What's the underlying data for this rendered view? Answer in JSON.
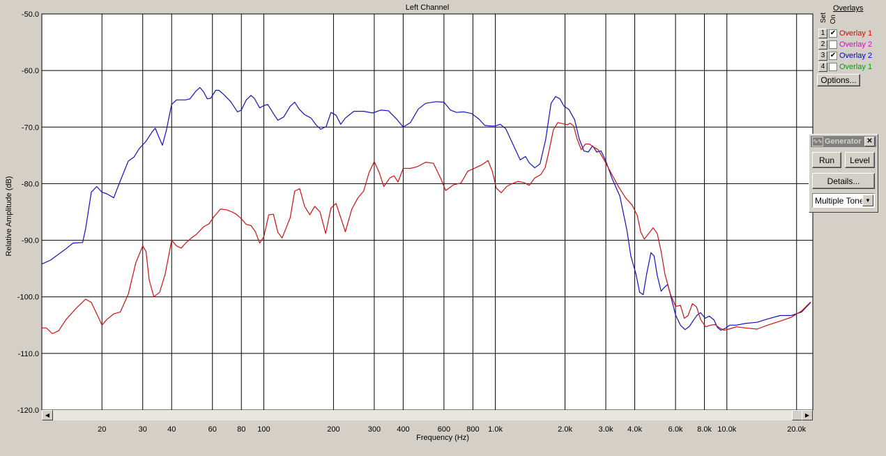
{
  "chart_data": {
    "type": "line",
    "title": "Left Channel",
    "xlabel": "Frequency (Hz)",
    "ylabel": "Relative Amplitude (dB)",
    "xscale": "log",
    "xlim": [
      11,
      23500
    ],
    "ylim": [
      -120,
      -50
    ],
    "grid": true,
    "x_ticks": [
      20,
      30,
      40,
      60,
      80,
      100,
      200,
      300,
      400,
      600,
      800,
      1000,
      2000,
      3000,
      4000,
      6000,
      8000,
      10000,
      20000
    ],
    "x_tick_labels": [
      "20",
      "30",
      "40",
      "60",
      "80",
      "100",
      "200",
      "300",
      "400",
      "600",
      "800",
      "1.0k",
      "2.0k",
      "3.0k",
      "4.0k",
      "6.0k",
      "8.0k",
      "10.0k",
      "20.0k"
    ],
    "y_ticks": [
      -50,
      -60,
      -70,
      -80,
      -90,
      -100,
      -110,
      -120
    ],
    "y_tick_labels": [
      "-50.0",
      "-60.0",
      "-70.0",
      "-80.0",
      "-90.0",
      "-100.0",
      "-110.0",
      "-120.0"
    ],
    "series": [
      {
        "color": "#1010c0",
        "points": [
          [
            11,
            -94.2
          ],
          [
            12,
            -93.5
          ],
          [
            14,
            -91.5
          ],
          [
            15,
            -90.5
          ],
          [
            16.5,
            -90.4
          ],
          [
            17,
            -88
          ],
          [
            18,
            -81.5
          ],
          [
            19,
            -80.5
          ],
          [
            20,
            -81.5
          ],
          [
            21,
            -81.8
          ],
          [
            22.5,
            -82.5
          ],
          [
            24,
            -79.5
          ],
          [
            26,
            -76
          ],
          [
            27.5,
            -75.3
          ],
          [
            29,
            -73.8
          ],
          [
            31,
            -72.5
          ],
          [
            33,
            -70.8
          ],
          [
            34,
            -70.2
          ],
          [
            35,
            -71.5
          ],
          [
            36.5,
            -73.2
          ],
          [
            38,
            -70.5
          ],
          [
            40,
            -66
          ],
          [
            42,
            -65.2
          ],
          [
            46,
            -65.2
          ],
          [
            48,
            -65
          ],
          [
            51,
            -63.6
          ],
          [
            53,
            -63
          ],
          [
            55,
            -63.8
          ],
          [
            57,
            -65
          ],
          [
            59,
            -64.9
          ],
          [
            62,
            -63.5
          ],
          [
            64,
            -63.5
          ],
          [
            67,
            -64.2
          ],
          [
            72,
            -65.5
          ],
          [
            77,
            -67.3
          ],
          [
            80,
            -67
          ],
          [
            84,
            -65.2
          ],
          [
            88,
            -64.4
          ],
          [
            91,
            -64.9
          ],
          [
            96,
            -66.6
          ],
          [
            100,
            -66.2
          ],
          [
            104,
            -66
          ],
          [
            110,
            -67.6
          ],
          [
            115,
            -68.8
          ],
          [
            122,
            -68.2
          ],
          [
            130,
            -66.3
          ],
          [
            136,
            -65.6
          ],
          [
            142,
            -66.8
          ],
          [
            150,
            -67.8
          ],
          [
            160,
            -68.4
          ],
          [
            168,
            -69.6
          ],
          [
            176,
            -70.4
          ],
          [
            186,
            -69.9
          ],
          [
            195,
            -67.4
          ],
          [
            205,
            -67.9
          ],
          [
            215,
            -69.5
          ],
          [
            225,
            -68.4
          ],
          [
            245,
            -67.2
          ],
          [
            270,
            -67.2
          ],
          [
            295,
            -67.5
          ],
          [
            320,
            -67
          ],
          [
            345,
            -67.1
          ],
          [
            375,
            -68.6
          ],
          [
            400,
            -70
          ],
          [
            430,
            -69.2
          ],
          [
            465,
            -66.8
          ],
          [
            500,
            -65.8
          ],
          [
            555,
            -65.5
          ],
          [
            600,
            -65.6
          ],
          [
            640,
            -67
          ],
          [
            680,
            -67.4
          ],
          [
            730,
            -67.3
          ],
          [
            790,
            -67.6
          ],
          [
            850,
            -68.6
          ],
          [
            900,
            -69.7
          ],
          [
            950,
            -69.8
          ],
          [
            1000,
            -69.8
          ],
          [
            1050,
            -69.5
          ],
          [
            1110,
            -70.3
          ],
          [
            1190,
            -73
          ],
          [
            1280,
            -75.8
          ],
          [
            1350,
            -75.2
          ],
          [
            1400,
            -76.3
          ],
          [
            1480,
            -77.2
          ],
          [
            1560,
            -76.5
          ],
          [
            1650,
            -72.2
          ],
          [
            1740,
            -65.8
          ],
          [
            1820,
            -64.6
          ],
          [
            1900,
            -65
          ],
          [
            1980,
            -66.3
          ],
          [
            2080,
            -66.9
          ],
          [
            2200,
            -68.7
          ],
          [
            2300,
            -72
          ],
          [
            2410,
            -74.2
          ],
          [
            2520,
            -74.4
          ],
          [
            2630,
            -73.3
          ],
          [
            2740,
            -74.4
          ],
          [
            2860,
            -74.2
          ],
          [
            3000,
            -76
          ],
          [
            3200,
            -79.2
          ],
          [
            3450,
            -82.2
          ],
          [
            3700,
            -88.2
          ],
          [
            3850,
            -92.8
          ],
          [
            4050,
            -96
          ],
          [
            4200,
            -99.2
          ],
          [
            4350,
            -99.6
          ],
          [
            4500,
            -96
          ],
          [
            4700,
            -92.2
          ],
          [
            4850,
            -92.8
          ],
          [
            5000,
            -96.2
          ],
          [
            5200,
            -99
          ],
          [
            5350,
            -98.4
          ],
          [
            5550,
            -97.8
          ],
          [
            5700,
            -99.6
          ],
          [
            6000,
            -103.2
          ],
          [
            6300,
            -105
          ],
          [
            6600,
            -105.8
          ],
          [
            6900,
            -105.2
          ],
          [
            7150,
            -104.2
          ],
          [
            7450,
            -103.2
          ],
          [
            7700,
            -102.8
          ],
          [
            8050,
            -103.8
          ],
          [
            8400,
            -103.4
          ],
          [
            8800,
            -104.1
          ],
          [
            9100,
            -105.4
          ],
          [
            9400,
            -105.9
          ],
          [
            9800,
            -105.6
          ],
          [
            10300,
            -105
          ],
          [
            11000,
            -105
          ],
          [
            12000,
            -104.7
          ],
          [
            13500,
            -104.5
          ],
          [
            15000,
            -103.9
          ],
          [
            17000,
            -103.3
          ],
          [
            19000,
            -103.3
          ],
          [
            21000,
            -102.7
          ],
          [
            23000,
            -101
          ]
        ]
      },
      {
        "color": "#d01010",
        "points": [
          [
            11,
            -105.5
          ],
          [
            11.5,
            -105.5
          ],
          [
            12.2,
            -106.5
          ],
          [
            13,
            -106
          ],
          [
            14,
            -104
          ],
          [
            15.5,
            -102
          ],
          [
            17,
            -100.4
          ],
          [
            18,
            -101
          ],
          [
            19.5,
            -104
          ],
          [
            20,
            -105
          ],
          [
            21,
            -104
          ],
          [
            22.5,
            -103
          ],
          [
            24,
            -102.7
          ],
          [
            26,
            -99.5
          ],
          [
            28,
            -94
          ],
          [
            30,
            -91
          ],
          [
            31,
            -92
          ],
          [
            32,
            -97
          ],
          [
            33.5,
            -100
          ],
          [
            35.5,
            -99.2
          ],
          [
            37.5,
            -96
          ],
          [
            40,
            -90
          ],
          [
            42,
            -91
          ],
          [
            44,
            -91.4
          ],
          [
            46,
            -90.5
          ],
          [
            49,
            -89.5
          ],
          [
            51,
            -89
          ],
          [
            55,
            -87.6
          ],
          [
            58,
            -87.1
          ],
          [
            61,
            -85.8
          ],
          [
            65,
            -84.5
          ],
          [
            69,
            -84.6
          ],
          [
            73,
            -85
          ],
          [
            76,
            -85.4
          ],
          [
            80,
            -86.2
          ],
          [
            84,
            -87.2
          ],
          [
            88,
            -87.4
          ],
          [
            92,
            -88.5
          ],
          [
            96,
            -90.5
          ],
          [
            100,
            -89.4
          ],
          [
            105,
            -85.5
          ],
          [
            110,
            -85.4
          ],
          [
            115,
            -88.6
          ],
          [
            120,
            -89.6
          ],
          [
            130,
            -86
          ],
          [
            136,
            -81.3
          ],
          [
            143,
            -80.9
          ],
          [
            150,
            -84
          ],
          [
            158,
            -85.5
          ],
          [
            166,
            -84
          ],
          [
            175,
            -85
          ],
          [
            185,
            -88.8
          ],
          [
            195,
            -84.3
          ],
          [
            205,
            -83.5
          ],
          [
            215,
            -86
          ],
          [
            225,
            -88.5
          ],
          [
            240,
            -84.5
          ],
          [
            255,
            -82.5
          ],
          [
            270,
            -81.3
          ],
          [
            285,
            -78
          ],
          [
            300,
            -76.1
          ],
          [
            315,
            -78
          ],
          [
            330,
            -80.5
          ],
          [
            350,
            -79
          ],
          [
            365,
            -78.6
          ],
          [
            380,
            -79.7
          ],
          [
            400,
            -77.3
          ],
          [
            430,
            -77.3
          ],
          [
            460,
            -77
          ],
          [
            500,
            -76.2
          ],
          [
            540,
            -76.4
          ],
          [
            580,
            -79
          ],
          [
            610,
            -81.2
          ],
          [
            660,
            -80.2
          ],
          [
            710,
            -79.9
          ],
          [
            760,
            -77.8
          ],
          [
            820,
            -77.2
          ],
          [
            880,
            -76.6
          ],
          [
            930,
            -75.9
          ],
          [
            970,
            -77.8
          ],
          [
            1010,
            -80.8
          ],
          [
            1060,
            -81.6
          ],
          [
            1120,
            -80.5
          ],
          [
            1180,
            -80
          ],
          [
            1250,
            -79.6
          ],
          [
            1330,
            -79.8
          ],
          [
            1400,
            -80.3
          ],
          [
            1480,
            -79
          ],
          [
            1570,
            -78.4
          ],
          [
            1640,
            -77.2
          ],
          [
            1700,
            -74.5
          ],
          [
            1780,
            -70.5
          ],
          [
            1860,
            -69.2
          ],
          [
            1960,
            -69.4
          ],
          [
            2050,
            -69.6
          ],
          [
            2100,
            -69.3
          ],
          [
            2180,
            -69.8
          ],
          [
            2250,
            -72
          ],
          [
            2350,
            -74
          ],
          [
            2450,
            -73
          ],
          [
            2550,
            -73
          ],
          [
            2650,
            -73.5
          ],
          [
            2780,
            -74
          ],
          [
            2950,
            -75.8
          ],
          [
            3150,
            -78
          ],
          [
            3400,
            -80.5
          ],
          [
            3650,
            -82.5
          ],
          [
            3900,
            -83.8
          ],
          [
            4100,
            -85.6
          ],
          [
            4250,
            -88.6
          ],
          [
            4400,
            -89.8
          ],
          [
            4600,
            -88.8
          ],
          [
            4800,
            -87.8
          ],
          [
            5000,
            -88.8
          ],
          [
            5200,
            -92
          ],
          [
            5400,
            -96
          ],
          [
            5700,
            -99.5
          ],
          [
            6000,
            -101.7
          ],
          [
            6300,
            -101.5
          ],
          [
            6550,
            -103.8
          ],
          [
            6800,
            -103.3
          ],
          [
            7100,
            -101.2
          ],
          [
            7400,
            -101.8
          ],
          [
            7700,
            -104
          ],
          [
            8100,
            -105.3
          ],
          [
            8500,
            -105
          ],
          [
            8900,
            -104.9
          ],
          [
            9300,
            -105.5
          ],
          [
            9700,
            -105.9
          ],
          [
            10200,
            -105.7
          ],
          [
            11000,
            -105.3
          ],
          [
            12000,
            -105.5
          ],
          [
            13500,
            -105.7
          ],
          [
            15000,
            -105
          ],
          [
            17000,
            -104.3
          ],
          [
            19000,
            -103.6
          ],
          [
            21000,
            -102.5
          ],
          [
            23000,
            -100.9
          ]
        ]
      }
    ]
  },
  "overlays_panel": {
    "title": "Overlays",
    "col_set": "Set",
    "col_on": "On",
    "items": [
      {
        "set": "1",
        "checked": true,
        "checkmark": "✔",
        "label": "Overlay 1",
        "color": "#e00000"
      },
      {
        "set": "2",
        "checked": false,
        "checkmark": "",
        "label": "Overlay 2",
        "color": "#e000e0"
      },
      {
        "set": "3",
        "checked": true,
        "checkmark": "✔",
        "label": "Overlay 2",
        "color": "#0000e0"
      },
      {
        "set": "4",
        "checked": false,
        "checkmark": "",
        "label": "Overlay 1",
        "color": "#00a000"
      }
    ],
    "options_label": "Options..."
  },
  "generator": {
    "title": "Generator",
    "run_label": "Run",
    "level_label": "Level",
    "details_label": "Details...",
    "selected_mode": "Multiple Tones"
  }
}
